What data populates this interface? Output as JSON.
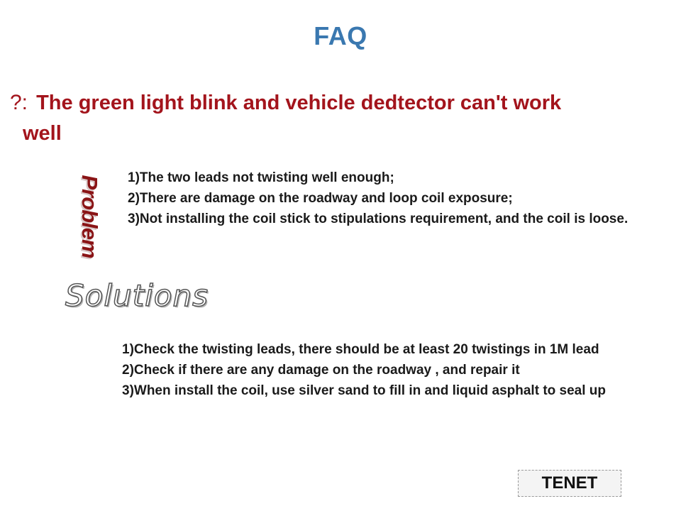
{
  "title": "FAQ",
  "question": {
    "mark": "?:",
    "line1": "The green light blink and vehicle dedtector can't work",
    "line2": "well"
  },
  "problem": {
    "label": "Problem",
    "items": [
      "1)The two leads not twisting well enough;",
      "2)There are damage on the roadway and loop coil exposure;",
      "3)Not installing the coil stick to stipulations requirement, and the coil is loose."
    ]
  },
  "solutions": {
    "label": "Solutions",
    "items": [
      "1)Check the twisting leads, there should be at least 20 twistings in 1M lead",
      "2)Check if there are any damage on the roadway , and repair it",
      "3)When install the coil, use silver sand to fill in and liquid asphalt to seal up"
    ]
  },
  "brand": "TENET",
  "colors": {
    "title": "#3a78b0",
    "question": "#a3141c",
    "problem_label": "#8a1416",
    "body_text": "#1a1a1a"
  }
}
